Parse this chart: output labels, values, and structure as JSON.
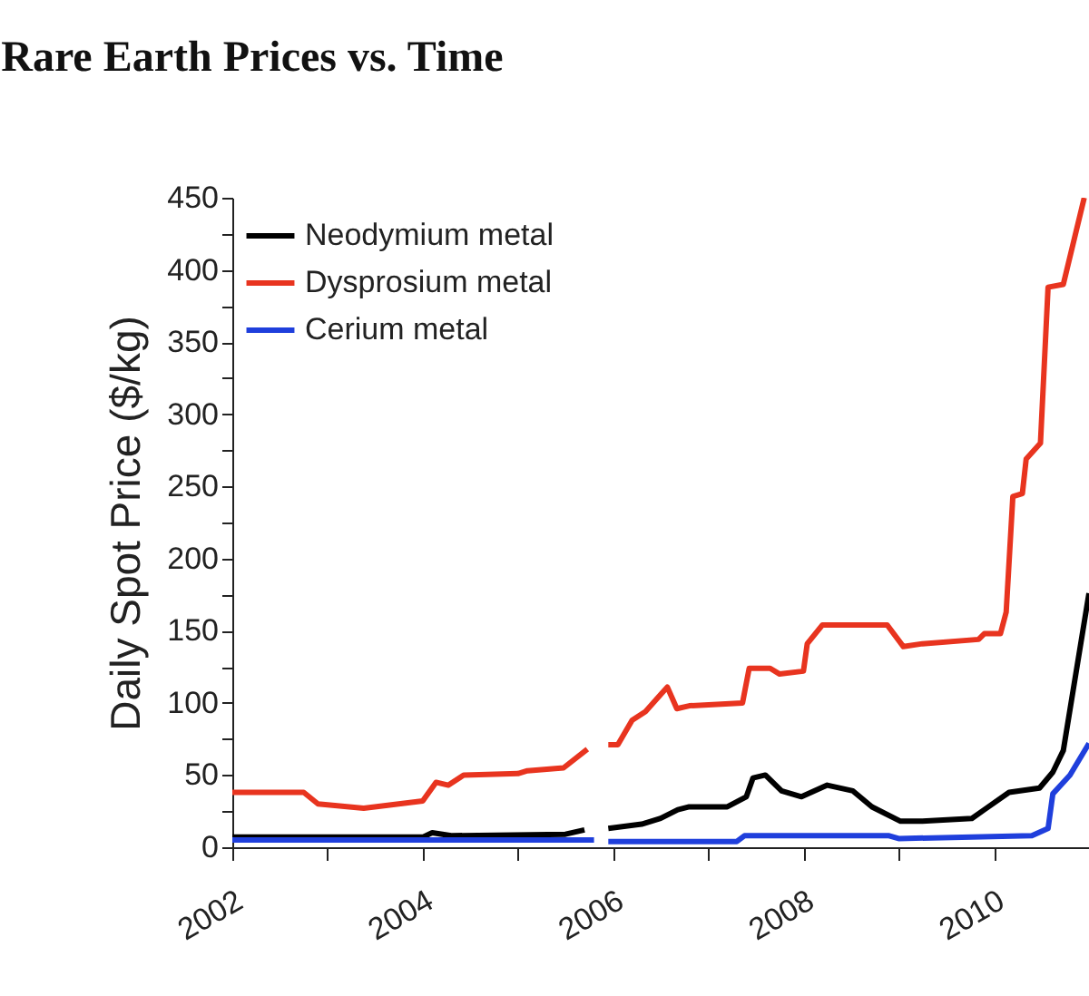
{
  "chart_data": {
    "type": "line",
    "title": "Rare Earth Prices vs. Time",
    "ylabel": "Daily Spot Price ($/kg)",
    "xlim": [
      2002,
      2011
    ],
    "xticks": [
      2002,
      {
        "value": 2003,
        "label": null
      },
      2004,
      {
        "value": 2005,
        "label": null
      },
      2006,
      {
        "value": 2007,
        "label": null
      },
      2008,
      {
        "value": 2009,
        "label": null
      },
      2010
    ],
    "ylim": [
      0,
      450
    ],
    "yticks": [
      0,
      {
        "value": 25,
        "label": null
      },
      50,
      {
        "value": 75,
        "label": null
      },
      100,
      {
        "value": 125,
        "label": null
      },
      150,
      {
        "value": 175,
        "label": null
      },
      200,
      {
        "value": 225,
        "label": null
      },
      250,
      {
        "value": 275,
        "label": null
      },
      300,
      {
        "value": 325,
        "label": null
      },
      350,
      {
        "value": 375,
        "label": null
      },
      400,
      {
        "value": 425,
        "label": null
      },
      450
    ],
    "legend": "top left",
    "grid": false,
    "series": [
      {
        "name": "Neodymium metal",
        "color": "#000000",
        "x": [
          2002.0,
          2004.0,
          2004.1,
          2004.3,
          2005.5,
          2005.7,
          2005.85,
          2005.95,
          2006.3,
          2006.5,
          2006.68,
          2006.8,
          2007.2,
          2007.4,
          2007.47,
          2007.6,
          2007.77,
          2007.98,
          2008.25,
          2008.52,
          2008.72,
          2009.02,
          2009.25,
          2009.77,
          2009.9,
          2010.16,
          2010.48,
          2010.62,
          2010.73,
          2011.0
        ],
        "values": [
          7,
          7,
          10,
          8,
          9,
          12,
          null,
          13,
          16,
          20,
          26,
          28,
          28,
          35,
          48,
          50,
          39,
          35,
          43,
          39,
          28,
          18,
          18,
          20,
          26,
          38,
          41,
          52,
          67,
          176
        ]
      },
      {
        "name": "Dysprosium metal",
        "color": "#e8341f",
        "x": [
          2002.0,
          2002.75,
          2002.9,
          2003.38,
          2004.0,
          2004.14,
          2004.27,
          2004.43,
          2005.0,
          2005.1,
          2005.48,
          2005.73,
          2005.85,
          2005.95,
          2006.05,
          2006.2,
          2006.34,
          2006.57,
          2006.67,
          2006.8,
          2007.36,
          2007.43,
          2007.65,
          2007.75,
          2008.0,
          2008.04,
          2008.2,
          2008.88,
          2009.05,
          2009.25,
          2009.84,
          2009.9,
          2010.07,
          2010.13,
          2010.2,
          2010.3,
          2010.34,
          2010.49,
          2010.57,
          2010.73,
          2010.95
        ],
        "values": [
          38,
          38,
          30,
          27,
          32,
          45,
          43,
          50,
          51,
          53,
          55,
          68,
          null,
          71,
          71,
          88,
          94,
          111,
          96,
          98,
          100,
          124,
          124,
          120,
          122,
          141,
          154,
          154,
          139,
          141,
          144,
          148,
          148,
          163,
          243,
          245,
          269,
          280,
          388,
          390,
          450
        ]
      },
      {
        "name": "Cerium metal",
        "color": "#1f3fdc",
        "x": [
          2002.0,
          2005.8,
          2005.85,
          2005.95,
          2007.3,
          2007.38,
          2008.9,
          2009.0,
          2010.4,
          2010.57,
          2010.62,
          2010.8,
          2011.0
        ],
        "values": [
          5,
          5,
          null,
          4,
          4,
          8,
          8,
          6,
          8,
          13,
          37,
          50,
          72
        ]
      }
    ]
  }
}
